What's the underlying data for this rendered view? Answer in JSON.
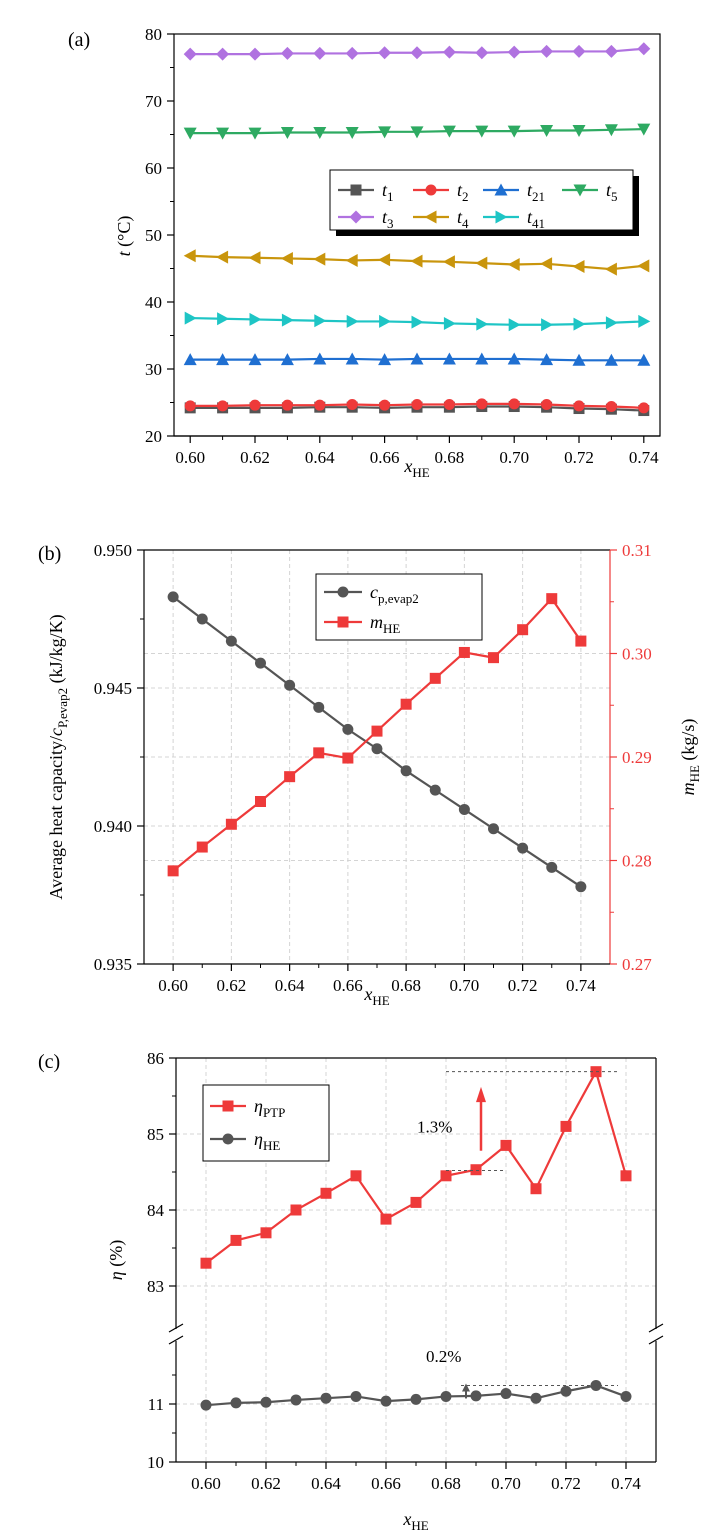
{
  "chart_data": [
    {
      "type": "line",
      "panel_label": "(a)",
      "xlabel": {
        "main": "x",
        "sub": "HE"
      },
      "ylabel": {
        "main": "t",
        "unit": " (°C)"
      },
      "xlim": [
        0.595,
        0.745
      ],
      "ylim": [
        20,
        80
      ],
      "x": [
        0.6,
        0.61,
        0.62,
        0.63,
        0.64,
        0.65,
        0.66,
        0.67,
        0.68,
        0.69,
        0.7,
        0.71,
        0.72,
        0.73,
        0.74
      ],
      "x_ticks": [
        "0.60",
        "0.62",
        "0.64",
        "0.66",
        "0.68",
        "0.70",
        "0.72",
        "0.74"
      ],
      "y_ticks": [
        "20",
        "30",
        "40",
        "50",
        "60",
        "70",
        "80"
      ],
      "grid": false,
      "legend_position": "middle-right",
      "series": [
        {
          "name": "t",
          "sub": "1",
          "color": "#555555",
          "marker": "square",
          "values": [
            24.2,
            24.2,
            24.2,
            24.2,
            24.3,
            24.3,
            24.2,
            24.3,
            24.3,
            24.4,
            24.4,
            24.3,
            24.1,
            24.0,
            23.8
          ]
        },
        {
          "name": "t",
          "sub": "2",
          "color": "#ee3a3a",
          "marker": "circle",
          "values": [
            24.5,
            24.5,
            24.6,
            24.6,
            24.6,
            24.7,
            24.6,
            24.7,
            24.7,
            24.8,
            24.8,
            24.7,
            24.5,
            24.4,
            24.2
          ]
        },
        {
          "name": "t",
          "sub": "21",
          "color": "#1f6fd1",
          "marker": "triangle-up",
          "values": [
            31.4,
            31.4,
            31.4,
            31.4,
            31.5,
            31.5,
            31.4,
            31.5,
            31.5,
            31.5,
            31.5,
            31.4,
            31.3,
            31.3,
            31.3
          ]
        },
        {
          "name": "t",
          "sub": "5",
          "color": "#2eaa62",
          "marker": "triangle-down",
          "values": [
            65.2,
            65.2,
            65.2,
            65.3,
            65.3,
            65.3,
            65.4,
            65.4,
            65.5,
            65.5,
            65.5,
            65.6,
            65.6,
            65.7,
            65.8
          ]
        },
        {
          "name": "t",
          "sub": "3",
          "color": "#b072e0",
          "marker": "diamond",
          "values": [
            77.0,
            77.0,
            77.0,
            77.1,
            77.1,
            77.1,
            77.2,
            77.2,
            77.3,
            77.2,
            77.3,
            77.4,
            77.4,
            77.4,
            77.8
          ]
        },
        {
          "name": "t",
          "sub": "4",
          "color": "#c9950c",
          "marker": "triangle-left",
          "values": [
            46.9,
            46.7,
            46.6,
            46.5,
            46.4,
            46.2,
            46.3,
            46.1,
            46.0,
            45.8,
            45.6,
            45.7,
            45.3,
            44.9,
            45.4
          ]
        },
        {
          "name": "t",
          "sub": "41",
          "color": "#1ec5c5",
          "marker": "triangle-right",
          "values": [
            37.6,
            37.5,
            37.4,
            37.3,
            37.2,
            37.1,
            37.1,
            37.0,
            36.8,
            36.7,
            36.6,
            36.6,
            36.7,
            36.9,
            37.1
          ]
        }
      ]
    },
    {
      "type": "line",
      "panel_label": "(b)",
      "xlabel": {
        "main": "x",
        "sub": "HE"
      },
      "ylabel_left": {
        "pre": "Average heat capacity/",
        "main": "c",
        "sub": "P,evap2",
        "unit": " (kJ/kg/K)"
      },
      "ylabel_right": {
        "main": "m",
        "sub": "HE",
        "unit": " (kg/s)"
      },
      "xlim": [
        0.59,
        0.75
      ],
      "ylim_left": [
        0.935,
        0.95
      ],
      "ylim_right": [
        0.27,
        0.31
      ],
      "x": [
        0.6,
        0.61,
        0.62,
        0.63,
        0.64,
        0.65,
        0.66,
        0.67,
        0.68,
        0.69,
        0.7,
        0.71,
        0.72,
        0.73,
        0.74
      ],
      "x_ticks": [
        "0.60",
        "0.62",
        "0.64",
        "0.66",
        "0.68",
        "0.70",
        "0.72",
        "0.74"
      ],
      "y_ticks_left": [
        "0.935",
        "0.940",
        "0.945",
        "0.950"
      ],
      "y_ticks_right": [
        "0.27",
        "0.28",
        "0.29",
        "0.30",
        "0.31"
      ],
      "grid": true,
      "legend_position": "top-center",
      "right_axis_color": "#ee3a3a",
      "series": [
        {
          "name": "c",
          "sub": "p,evap2",
          "axis": "left",
          "color": "#555555",
          "marker": "circle",
          "values": [
            0.9483,
            0.9475,
            0.9467,
            0.9459,
            0.9451,
            0.9443,
            0.9435,
            0.9428,
            0.942,
            0.9413,
            0.9406,
            0.9399,
            0.9392,
            0.9385,
            0.9378
          ]
        },
        {
          "name": "m",
          "sub": "HE",
          "axis": "right",
          "color": "#ee3a3a",
          "marker": "square",
          "values": [
            0.279,
            0.2813,
            0.2835,
            0.2857,
            0.2881,
            0.2904,
            0.2899,
            0.2925,
            0.2951,
            0.2976,
            0.3001,
            0.2996,
            0.3023,
            0.3053,
            0.3012
          ]
        }
      ]
    },
    {
      "type": "line",
      "panel_label": "(c)",
      "xlabel": {
        "main": "x",
        "sub": "HE"
      },
      "ylabel": {
        "main": "η",
        "unit": " (%)"
      },
      "xlim": [
        0.59,
        0.75
      ],
      "y_segments": [
        {
          "range": [
            10,
            12
          ],
          "ticks": [
            "10",
            "11"
          ]
        },
        {
          "range": [
            82.5,
            86
          ],
          "ticks": [
            "83",
            "84",
            "85",
            "86"
          ]
        }
      ],
      "axis_break": true,
      "x": [
        0.6,
        0.61,
        0.62,
        0.63,
        0.64,
        0.65,
        0.66,
        0.67,
        0.68,
        0.69,
        0.7,
        0.71,
        0.72,
        0.73,
        0.74
      ],
      "x_ticks": [
        "0.60",
        "0.62",
        "0.64",
        "0.66",
        "0.68",
        "0.70",
        "0.72",
        "0.74"
      ],
      "grid": true,
      "legend_position": "top-left",
      "series": [
        {
          "name": "η",
          "sub": "PTP",
          "color": "#ee3a3a",
          "marker": "square",
          "values": [
            83.3,
            83.6,
            83.7,
            84.0,
            84.22,
            84.45,
            83.88,
            84.1,
            84.45,
            84.53,
            84.85,
            84.28,
            85.1,
            85.82,
            84.45
          ]
        },
        {
          "name": "η",
          "sub": "HE",
          "color": "#555555",
          "marker": "circle",
          "values": [
            10.98,
            11.02,
            11.03,
            11.07,
            11.1,
            11.13,
            11.05,
            11.08,
            11.13,
            11.14,
            11.18,
            11.1,
            11.22,
            11.32,
            11.13
          ]
        }
      ],
      "annotations": [
        {
          "text": "1.3%",
          "color": "#ee3a3a",
          "from_y": 84.52,
          "to_y": 85.82
        },
        {
          "text": "0.2%",
          "color": "#555555",
          "from_y": 11.13,
          "to_y": 11.32
        }
      ]
    }
  ]
}
